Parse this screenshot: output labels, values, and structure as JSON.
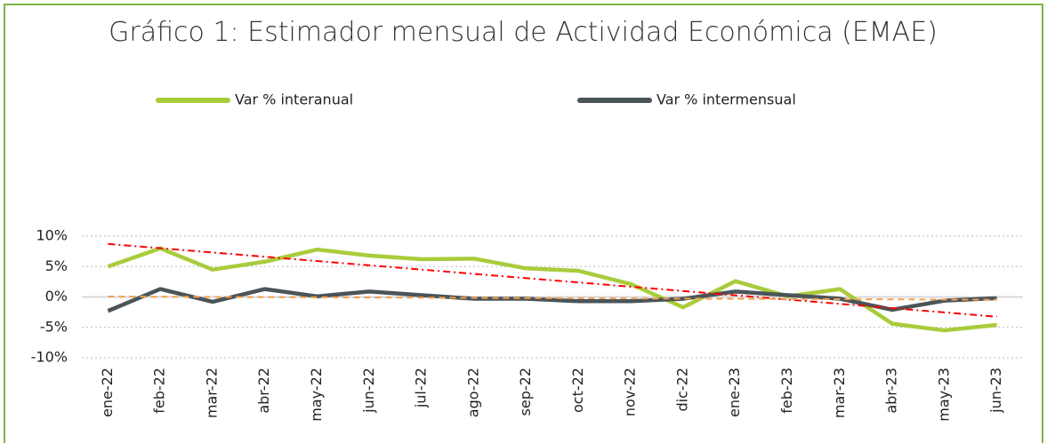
{
  "chart_data": {
    "type": "line",
    "title": "Gráfico 1: Estimador mensual de Actividad Económica (EMAE)",
    "categories": [
      "ene-22",
      "feb-22",
      "mar-22",
      "abr-22",
      "may-22",
      "jun-22",
      "jul-22",
      "ago-22",
      "sep-22",
      "oct-22",
      "nov-22",
      "dic-22",
      "ene-23",
      "feb-23",
      "mar-23",
      "abr-23",
      "may-23",
      "jun-23"
    ],
    "series": [
      {
        "name": "Var % interanual",
        "color": "#a9cc3c",
        "values": [
          5.0,
          8.0,
          4.5,
          5.8,
          7.8,
          6.8,
          6.2,
          6.3,
          4.7,
          4.3,
          2.1,
          -1.7,
          2.6,
          0.1,
          1.3,
          -4.4,
          -5.5,
          -4.6
        ]
      },
      {
        "name": "Var % intermensual",
        "color": "#4a5459",
        "values": [
          -2.3,
          1.3,
          -0.8,
          1.3,
          0.1,
          0.9,
          0.3,
          -0.3,
          -0.3,
          -0.7,
          -0.7,
          -0.3,
          0.9,
          0.3,
          -0.3,
          -2.1,
          -0.6,
          -0.2
        ]
      }
    ],
    "trendlines": [
      {
        "series": 0,
        "color": "#ff0000",
        "dash": "8 4 2 4"
      },
      {
        "series": 1,
        "color": "#f0a050",
        "dash": "7 5"
      }
    ],
    "ylim": [
      -10,
      10
    ],
    "yticks": [
      {
        "value": -10,
        "label": "-10%"
      },
      {
        "value": -5,
        "label": "-5%"
      },
      {
        "value": 0,
        "label": "0%"
      },
      {
        "value": 5,
        "label": "5%"
      },
      {
        "value": 10,
        "label": "10%"
      }
    ],
    "grid": true,
    "legend": "top"
  }
}
